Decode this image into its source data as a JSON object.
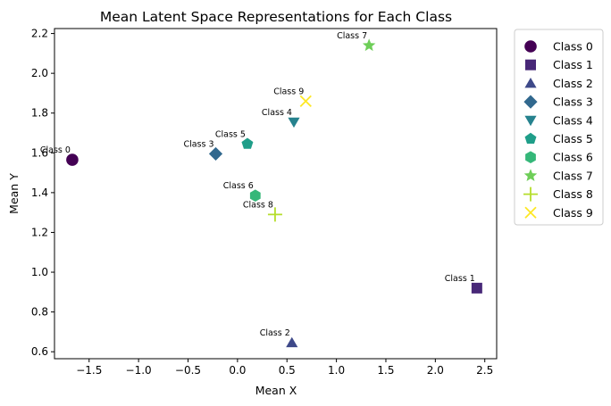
{
  "chart_data": {
    "type": "scatter",
    "title": "Mean Latent Space Representations for Each Class",
    "xlabel": "Mean X",
    "ylabel": "Mean Y",
    "xlim": [
      -1.85,
      2.62
    ],
    "ylim": [
      0.565,
      2.225
    ],
    "xticks": [
      -1.5,
      -1.0,
      -0.5,
      0.0,
      0.5,
      1.0,
      1.5,
      2.0,
      2.5
    ],
    "xtick_labels": [
      "−1.5",
      "−1.0",
      "−0.5",
      "0.0",
      "0.5",
      "1.0",
      "1.5",
      "2.0",
      "2.5"
    ],
    "yticks": [
      0.6,
      0.8,
      1.0,
      1.2,
      1.4,
      1.6,
      1.8,
      2.0,
      2.2
    ],
    "ytick_labels": [
      "0.6",
      "0.8",
      "1.0",
      "1.2",
      "1.4",
      "1.6",
      "1.8",
      "2.0",
      "2.2"
    ],
    "grid": false,
    "legend_position": "outside-right-top",
    "series": [
      {
        "name": "Class 0",
        "x": -1.67,
        "y": 1.565,
        "marker": "circle",
        "color": "#440154",
        "annotation": "Class 0"
      },
      {
        "name": "Class 1",
        "x": 2.42,
        "y": 0.92,
        "marker": "square",
        "color": "#482878",
        "annotation": "Class 1"
      },
      {
        "name": "Class 2",
        "x": 0.55,
        "y": 0.645,
        "marker": "triangle-up",
        "color": "#3e4989",
        "annotation": "Class 2"
      },
      {
        "name": "Class 3",
        "x": -0.22,
        "y": 1.595,
        "marker": "diamond",
        "color": "#31688e",
        "annotation": "Class 3"
      },
      {
        "name": "Class 4",
        "x": 0.57,
        "y": 1.755,
        "marker": "triangle-down",
        "color": "#26828e",
        "annotation": "Class 4"
      },
      {
        "name": "Class 5",
        "x": 0.1,
        "y": 1.645,
        "marker": "pentagon",
        "color": "#1f9e89",
        "annotation": "Class 5"
      },
      {
        "name": "Class 6",
        "x": 0.18,
        "y": 1.385,
        "marker": "hexagon",
        "color": "#35b779",
        "annotation": "Class 6"
      },
      {
        "name": "Class 7",
        "x": 1.33,
        "y": 2.14,
        "marker": "star",
        "color": "#6ece58",
        "annotation": "Class 7"
      },
      {
        "name": "Class 8",
        "x": 0.38,
        "y": 1.29,
        "marker": "plus",
        "color": "#b5de2b",
        "annotation": "Class 8"
      },
      {
        "name": "Class 9",
        "x": 0.69,
        "y": 1.86,
        "marker": "x",
        "color": "#fde725",
        "annotation": "Class 9"
      }
    ]
  }
}
